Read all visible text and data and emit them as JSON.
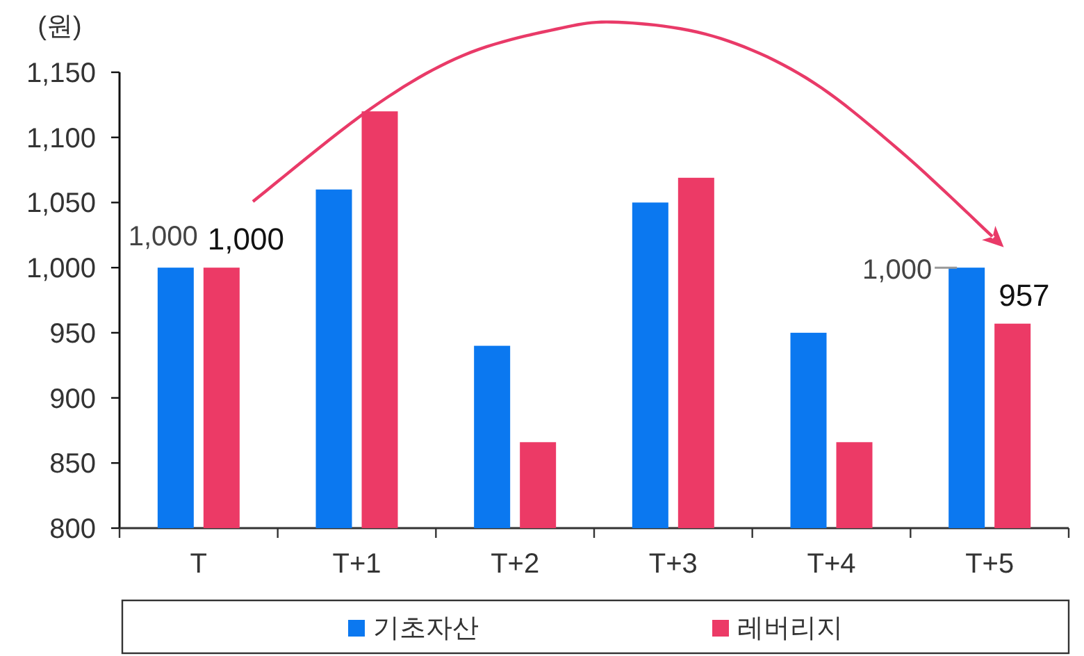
{
  "chart_data": {
    "type": "bar",
    "ylabel": "(원)",
    "categories": [
      "T",
      "T+1",
      "T+2",
      "T+3",
      "T+4",
      "T+5"
    ],
    "series": [
      {
        "name": "기초자산",
        "color": "#0b78f0",
        "values": [
          1000,
          1060,
          940,
          1050,
          950,
          1000
        ],
        "value_labels": [
          "1,000",
          null,
          null,
          null,
          null,
          "1,000"
        ]
      },
      {
        "name": "레버리지",
        "color": "#ec3a66",
        "values": [
          1000,
          1120,
          866,
          1069,
          866,
          957
        ],
        "value_labels": [
          "1,000",
          null,
          null,
          null,
          null,
          "957"
        ]
      }
    ],
    "ylim": [
      800,
      1150
    ],
    "yticks": [
      800,
      850,
      900,
      950,
      {
        "value": 1000,
        "label": "1,000"
      },
      {
        "value": 1050,
        "label": "1,050"
      },
      {
        "value": 1100,
        "label": "1,100"
      },
      {
        "value": 1150,
        "label": "1,150"
      }
    ],
    "grid": false,
    "legend": "bottom"
  }
}
